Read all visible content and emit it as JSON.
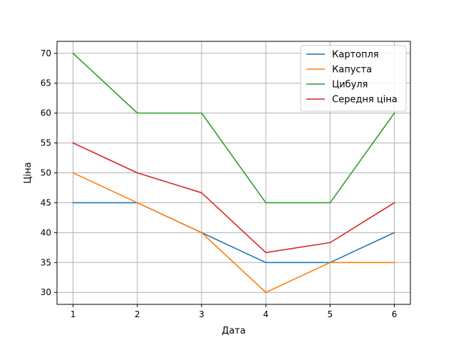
{
  "chart_data": {
    "type": "line",
    "title": "",
    "xlabel": "Дата",
    "ylabel": "Ціна",
    "x": [
      1,
      2,
      3,
      4,
      5,
      6
    ],
    "xlim": [
      0.75,
      6.25
    ],
    "ylim": [
      28.0,
      72.0
    ],
    "xticks": [
      1,
      2,
      3,
      4,
      5,
      6
    ],
    "yticks": [
      30,
      35,
      40,
      45,
      50,
      55,
      60,
      65,
      70
    ],
    "grid": true,
    "legend_position": "top-right",
    "series": [
      {
        "name": "Картопля",
        "color": "#1f77b4",
        "values": [
          45,
          45,
          40,
          35,
          35,
          40
        ]
      },
      {
        "name": "Капуста",
        "color": "#ff7f0e",
        "values": [
          50,
          45,
          40,
          30,
          35,
          35
        ]
      },
      {
        "name": "Цибуля",
        "color": "#2ca02c",
        "values": [
          70,
          60,
          60,
          45,
          45,
          60
        ]
      },
      {
        "name": "Середня ціна",
        "color": "#d62728",
        "values": [
          55,
          50,
          46.67,
          36.67,
          38.33,
          45
        ]
      }
    ]
  }
}
